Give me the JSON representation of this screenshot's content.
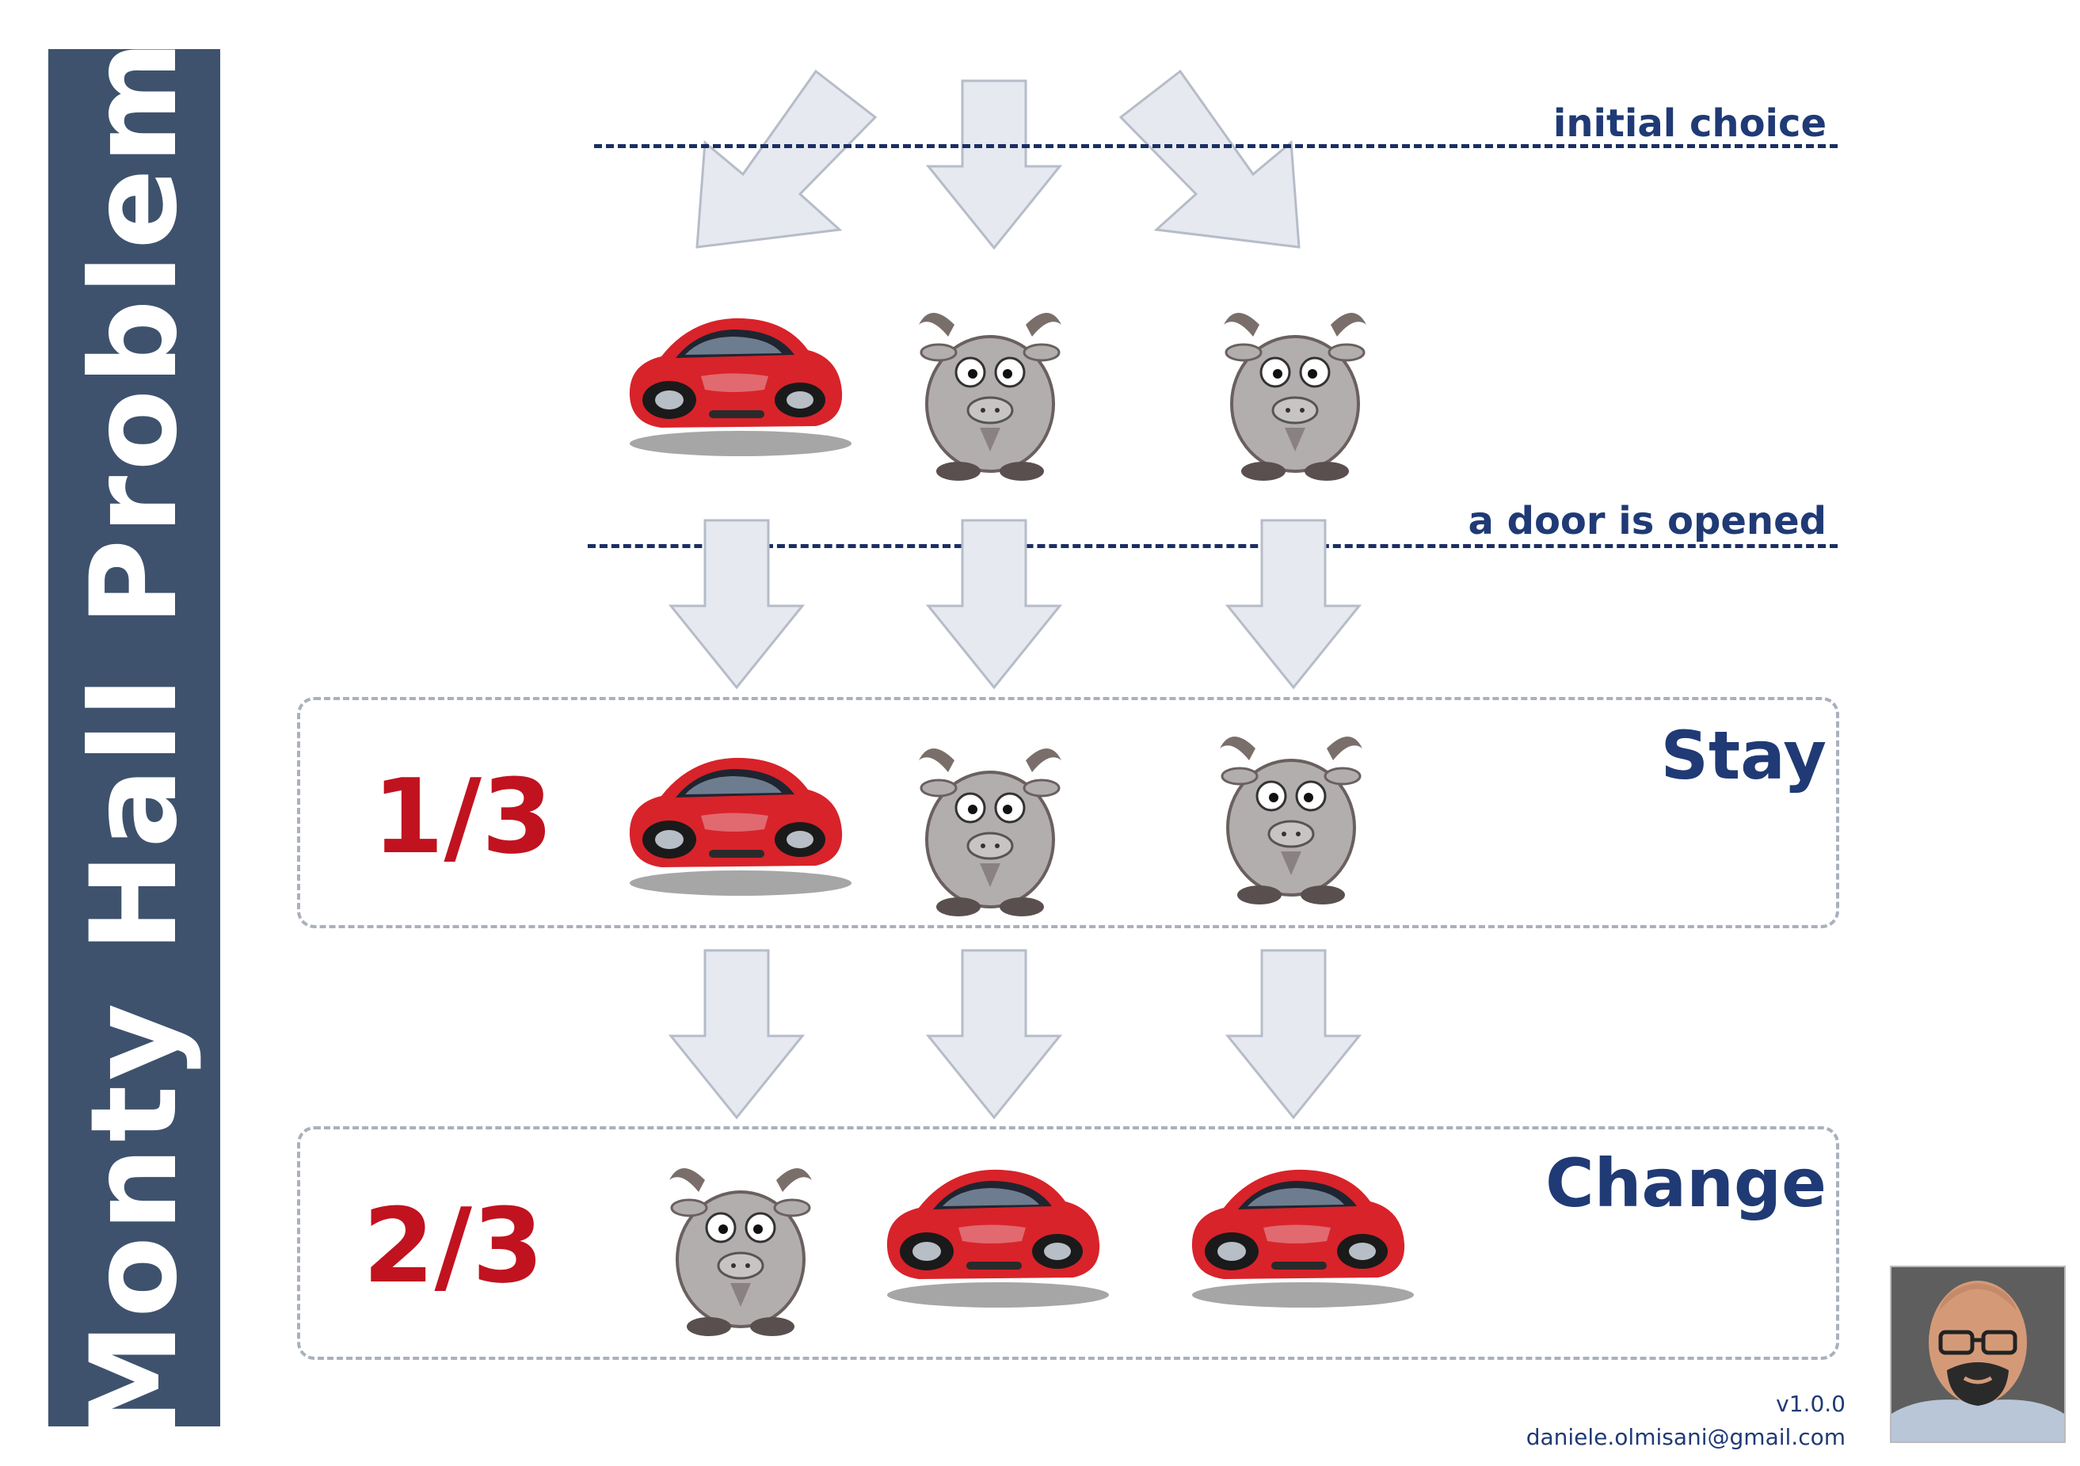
{
  "title": "Monty Hall Problem",
  "stages": {
    "initial_choice": "initial choice",
    "door_opened": "a door is opened"
  },
  "rows": {
    "initial": [
      "car",
      "goat",
      "goat"
    ],
    "stay": {
      "label": "Stay",
      "probability": "1/3",
      "items": [
        "car",
        "goat",
        "goat"
      ]
    },
    "change": {
      "label": "Change",
      "probability": "2/3",
      "items": [
        "goat",
        "car",
        "car"
      ]
    }
  },
  "footer": {
    "version": "v1.0.0",
    "email": "daniele.olmisani@gmail.com"
  },
  "colors": {
    "sidebar": "#3e526d",
    "label_blue": "#1f3a75",
    "probability_red": "#c1121f",
    "arrow_fill": "#e6e9f0",
    "arrow_stroke": "#b6bcc8",
    "box_border": "#aab0bd"
  },
  "icons": {
    "car": "red-sports-car-icon",
    "goat": "cartoon-goat-icon",
    "arrow": "down-arrow-icon"
  }
}
